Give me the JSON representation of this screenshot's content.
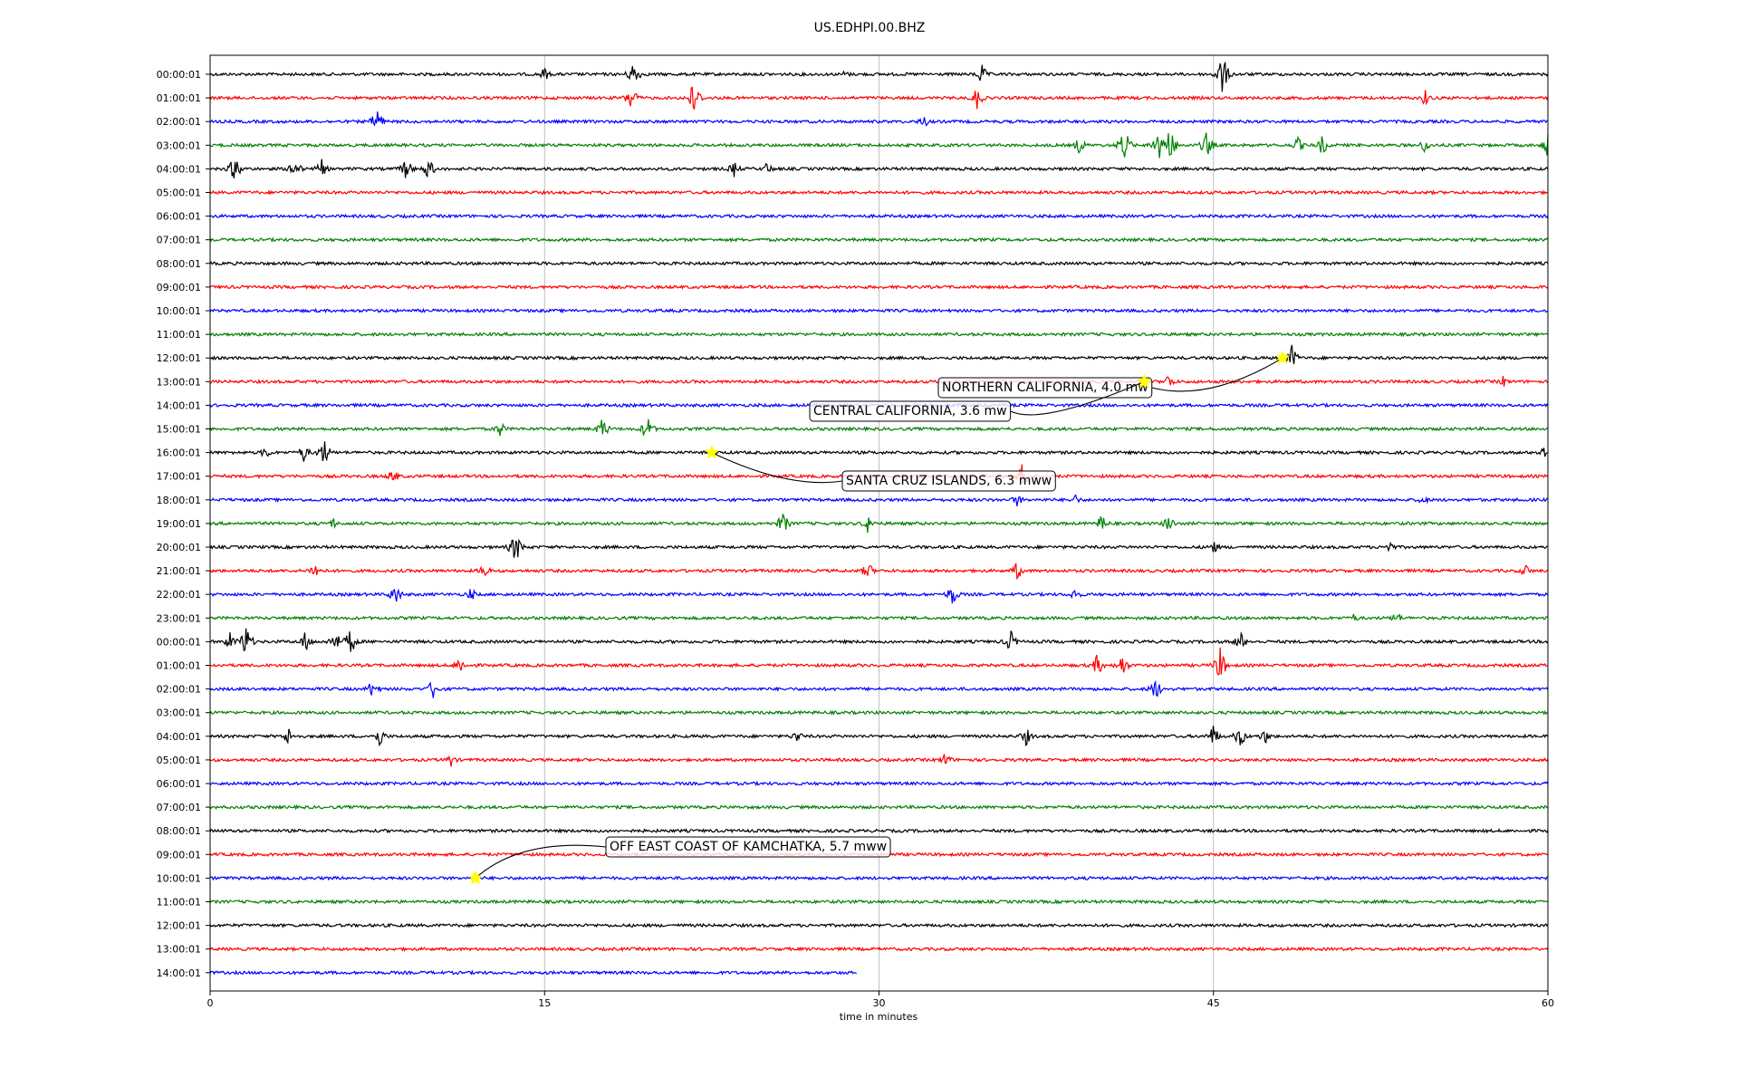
{
  "chart_data": {
    "type": "line",
    "title": "US.EDHPI.00.BHZ",
    "xlabel": "time in minutes",
    "ylabel": "",
    "xlim": [
      0,
      60
    ],
    "xticks": [
      "0",
      "15",
      "30",
      "45",
      "60"
    ],
    "grid_x": true,
    "colors": [
      "#000000",
      "#ff0000",
      "#0000ff",
      "#008000"
    ],
    "star_color": "#ffff00",
    "traces": [
      {
        "label": "00:00:01",
        "color": "#000000",
        "events": [
          [
            15,
            0.6
          ],
          [
            19,
            1.2
          ],
          [
            28.5,
            0.4
          ],
          [
            34.6,
            0.9
          ],
          [
            45.4,
            1.8
          ]
        ]
      },
      {
        "label": "01:00:01",
        "color": "#ff0000",
        "events": [
          [
            18.9,
            1.2
          ],
          [
            21.7,
            1.6
          ],
          [
            34.4,
            1.0
          ],
          [
            54.5,
            0.7
          ]
        ]
      },
      {
        "label": "02:00:01",
        "color": "#0000ff",
        "events": [
          [
            7.5,
            1.2
          ],
          [
            32,
            0.6
          ]
        ]
      },
      {
        "label": "03:00:01",
        "color": "#008000",
        "events": [
          [
            39,
            0.8
          ],
          [
            41,
            1.5
          ],
          [
            42.5,
            1.5
          ],
          [
            43,
            1.8
          ],
          [
            44.7,
            1.2
          ],
          [
            48.8,
            0.7
          ],
          [
            49.9,
            0.9
          ],
          [
            54.5,
            0.7
          ],
          [
            60,
            1.0
          ]
        ]
      },
      {
        "label": "04:00:01",
        "color": "#000000",
        "events": [
          [
            1.1,
            1.2
          ],
          [
            3.8,
            1.0
          ],
          [
            5,
            0.8
          ],
          [
            8.8,
            1.0
          ],
          [
            9.8,
            1.0
          ],
          [
            23.5,
            0.7
          ],
          [
            25,
            0.6
          ]
        ]
      },
      {
        "label": "05:00:01",
        "color": "#ff0000",
        "events": []
      },
      {
        "label": "06:00:01",
        "color": "#0000ff",
        "events": []
      },
      {
        "label": "07:00:01",
        "color": "#008000",
        "events": []
      },
      {
        "label": "08:00:01",
        "color": "#000000",
        "events": []
      },
      {
        "label": "09:00:01",
        "color": "#ff0000",
        "events": []
      },
      {
        "label": "10:00:01",
        "color": "#0000ff",
        "events": []
      },
      {
        "label": "11:00:01",
        "color": "#008000",
        "events": []
      },
      {
        "label": "12:00:01",
        "color": "#000000",
        "events": [
          [
            48.5,
            1.2
          ]
        ]
      },
      {
        "label": "13:00:01",
        "color": "#ff0000",
        "events": [
          [
            43,
            0.7
          ],
          [
            58,
            0.5
          ]
        ]
      },
      {
        "label": "14:00:01",
        "color": "#0000ff",
        "events": []
      },
      {
        "label": "15:00:01",
        "color": "#008000",
        "events": [
          [
            13,
            0.7
          ],
          [
            17.6,
            1.0
          ],
          [
            19.6,
            1.2
          ]
        ]
      },
      {
        "label": "16:00:01",
        "color": "#000000",
        "events": [
          [
            2.5,
            0.6
          ],
          [
            4.2,
            0.8
          ],
          [
            5.1,
            1.2
          ],
          [
            59.8,
            0.7
          ]
        ]
      },
      {
        "label": "17:00:01",
        "color": "#ff0000",
        "events": [
          [
            8.2,
            0.7
          ],
          [
            36.5,
            1.5
          ]
        ]
      },
      {
        "label": "18:00:01",
        "color": "#0000ff",
        "events": [
          [
            36.2,
            0.6
          ],
          [
            38.8,
            0.5
          ],
          [
            54.4,
            0.5
          ]
        ]
      },
      {
        "label": "19:00:01",
        "color": "#008000",
        "events": [
          [
            5.5,
            0.5
          ],
          [
            25.7,
            1.0
          ],
          [
            29.5,
            0.8
          ],
          [
            40,
            0.8
          ],
          [
            43,
            0.8
          ]
        ]
      },
      {
        "label": "20:00:01",
        "color": "#000000",
        "events": [
          [
            13.7,
            1.4
          ],
          [
            45,
            0.6
          ],
          [
            52.9,
            0.6
          ]
        ]
      },
      {
        "label": "21:00:01",
        "color": "#ff0000",
        "events": [
          [
            4.7,
            0.8
          ],
          [
            12.3,
            0.7
          ],
          [
            29.5,
            0.8
          ],
          [
            36.2,
            0.8
          ],
          [
            59,
            0.6
          ]
        ]
      },
      {
        "label": "22:00:01",
        "color": "#0000ff",
        "events": [
          [
            8.3,
            1.0
          ],
          [
            11.7,
            0.6
          ],
          [
            33.3,
            1.0
          ],
          [
            38.8,
            0.6
          ]
        ]
      },
      {
        "label": "23:00:01",
        "color": "#008000",
        "events": [
          [
            51.3,
            0.4
          ],
          [
            53.2,
            0.6
          ]
        ]
      },
      {
        "label": "00:00:01",
        "color": "#000000",
        "events": [
          [
            0.9,
            0.8
          ],
          [
            1.6,
            1.5
          ],
          [
            4.3,
            1.0
          ],
          [
            5.6,
            1.0
          ],
          [
            6.3,
            1.2
          ],
          [
            35.9,
            1.0
          ],
          [
            46.2,
            0.9
          ]
        ]
      },
      {
        "label": "01:00:01",
        "color": "#ff0000",
        "events": [
          [
            11.2,
            0.8
          ],
          [
            39.8,
            1.0
          ],
          [
            40.9,
            1.0
          ],
          [
            45.3,
            1.5
          ]
        ]
      },
      {
        "label": "02:00:01",
        "color": "#0000ff",
        "events": [
          [
            7.3,
            0.9
          ],
          [
            10,
            0.9
          ],
          [
            42.4,
            1.0
          ]
        ]
      },
      {
        "label": "03:00:01",
        "color": "#008000",
        "events": []
      },
      {
        "label": "04:00:01",
        "color": "#000000",
        "events": [
          [
            3.5,
            0.8
          ],
          [
            7.6,
            0.9
          ],
          [
            26.3,
            0.6
          ],
          [
            36.6,
            0.8
          ],
          [
            45,
            1.0
          ],
          [
            46.2,
            1.0
          ],
          [
            47.3,
            0.7
          ]
        ]
      },
      {
        "label": "05:00:01",
        "color": "#ff0000",
        "events": [
          [
            10.8,
            0.6
          ],
          [
            33,
            0.7
          ]
        ]
      },
      {
        "label": "06:00:01",
        "color": "#0000ff",
        "events": []
      },
      {
        "label": "07:00:01",
        "color": "#008000",
        "events": []
      },
      {
        "label": "08:00:01",
        "color": "#000000",
        "events": []
      },
      {
        "label": "09:00:01",
        "color": "#ff0000",
        "events": []
      },
      {
        "label": "10:00:01",
        "color": "#0000ff",
        "events": []
      },
      {
        "label": "11:00:01",
        "color": "#008000",
        "events": []
      },
      {
        "label": "12:00:01",
        "color": "#000000",
        "events": []
      },
      {
        "label": "13:00:01",
        "color": "#ff0000",
        "events": []
      },
      {
        "label": "14:00:01",
        "color": "#0000ff",
        "end_minute": 29,
        "events": []
      }
    ],
    "annotations": [
      {
        "text": "NORTHERN CALIFORNIA, 4.0 mw",
        "trace": 12,
        "minute": 48.1
      },
      {
        "text": "CENTRAL CALIFORNIA, 3.6 mw",
        "trace": 13,
        "minute": 41.9
      },
      {
        "text": "SANTA CRUZ ISLANDS, 6.3 mww",
        "trace": 16,
        "minute": 22.5
      },
      {
        "text": "OFF EAST COAST OF KAMCHATKA, 5.7 mww",
        "trace": 34,
        "minute": 11.9
      }
    ]
  }
}
